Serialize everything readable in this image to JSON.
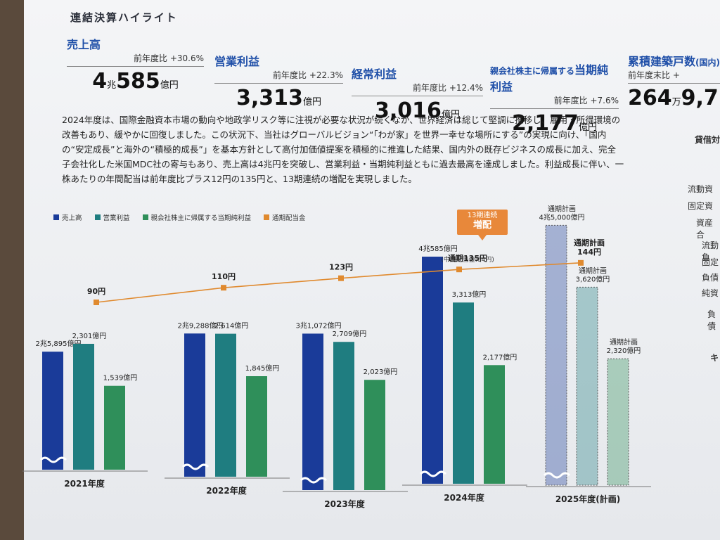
{
  "section_title": "連結決算ハイライト",
  "kpis": [
    {
      "label": "売上高",
      "ratio": "前年度比 +30.6%",
      "v1": "4",
      "u1": "兆",
      "v2": "585",
      "u2": "億円"
    },
    {
      "label": "営業利益",
      "ratio": "前年度比 +22.3%",
      "v1": "3,313",
      "u1": "億円"
    },
    {
      "label": "経常利益",
      "ratio": "前年度比 +12.4%",
      "v1": "3,016",
      "u1": "億円"
    },
    {
      "label_prefix": "親会社株主に帰属する",
      "label": "当期純利益",
      "ratio": "前年度比 +7.6%",
      "v1": "2,177",
      "u1": "億円"
    },
    {
      "label": "累積建築戸数",
      "label_suffix": "(国内)",
      "ratio": "前年度末比 +",
      "v1": "264",
      "u1": "万",
      "v2": "9,7"
    }
  ],
  "body_text": "2024年度は、国際金融資本市場の動向や地政学リスク等に注視が必要な状況が続くなか、世界経済は総じて堅調に推移し、雇用・所得環境の改善もあり、緩やかに回復しました。この状況下、当社はグローバルビジョン“「わが家」を世界一幸せな場所にする”の実現に向け、「国内の“安定成長”と海外の“積極的成長”」を基本方針として高付加価値提案を積極的に推進した結果、国内外の既存ビジネスの成長に加え、完全子会社化した米国MDC社の寄与もあり、売上高は4兆円を突破し、営業利益・当期純利益ともに過去最高を達成しました。利益成長に伴い、一株あたりの年間配当は前年度比プラス12円の135円と、13期連続の増配を実現しました。",
  "badge": {
    "line1": "13期連続",
    "line2": "増配"
  },
  "right_edge": [
    "貸借対",
    "流動資",
    "固定資",
    "資産合",
    "流動負",
    "固定",
    "負債",
    "純資",
    "負債",
    "キ"
  ],
  "chart_data": {
    "type": "bar",
    "categories": [
      "2021年度",
      "2022年度",
      "2023年度",
      "2024年度",
      "2025年度(計画)"
    ],
    "series": [
      {
        "name": "売上高",
        "color": "#1a3b99",
        "values": [
          25895,
          29288,
          31072,
          40585,
          45000
        ],
        "labels": [
          "2兆5,895億円",
          "2兆9,288億円",
          "3兆1,072億円",
          "4兆585億円",
          "4兆5,000億円"
        ]
      },
      {
        "name": "営業利益",
        "color": "#1f7d80",
        "values": [
          2301,
          2614,
          2709,
          3313,
          3620
        ],
        "labels": [
          "2,301億円",
          "2,614億円",
          "2,709億円",
          "3,313億円",
          "3,620億円"
        ]
      },
      {
        "name": "親会社株主に帰属する当期純利益",
        "color": "#2f8f5a",
        "values": [
          1539,
          1845,
          2023,
          2177,
          2320
        ],
        "labels": [
          "1,539億円",
          "1,845億円",
          "2,023億円",
          "2,177億円",
          "2,320億円"
        ]
      }
    ],
    "dividend": {
      "name": "通期配当金",
      "color": "#e08a2f",
      "values": [
        90,
        110,
        123,
        135,
        144
      ],
      "labels": [
        "90円",
        "110円",
        "123円",
        "通期135円",
        "通期計画\n144円"
      ],
      "note_2024": "(中間配当金:64円)"
    },
    "plan_prefix": "通期計画",
    "planned_category_index": 4,
    "axis_break": true
  }
}
